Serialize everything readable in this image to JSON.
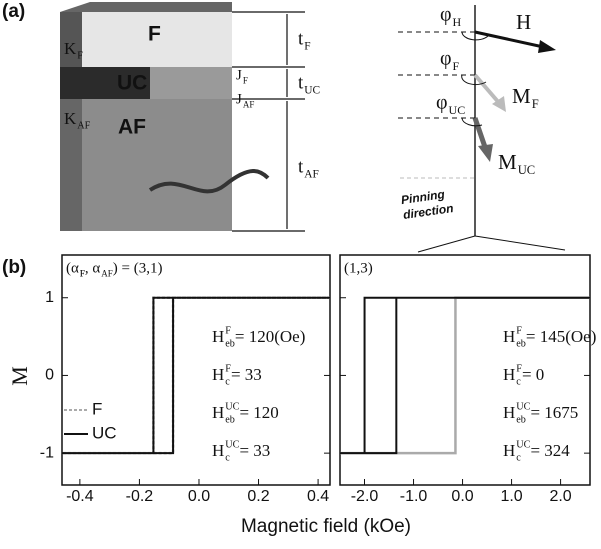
{
  "panel_a": {
    "label": "(a)",
    "layers": [
      "F",
      "UC",
      "AF"
    ],
    "anisotropy": [
      {
        "main": "K",
        "sub": "F"
      },
      {
        "main": "K",
        "sub": "AF"
      }
    ],
    "thickness": [
      {
        "main": "t",
        "sub": "F"
      },
      {
        "main": "t",
        "sub": "UC"
      },
      {
        "main": "t",
        "sub": "AF"
      }
    ],
    "coupling": [
      {
        "main": "J",
        "sub": "F"
      },
      {
        "main": "J",
        "sub": "AF"
      }
    ],
    "angles": [
      {
        "main": "φ",
        "sub": "H"
      },
      {
        "main": "φ",
        "sub": "F"
      },
      {
        "main": "φ",
        "sub": "UC"
      }
    ],
    "vectors": [
      {
        "main": "H"
      },
      {
        "main": "M",
        "sub": "F"
      },
      {
        "main": "M",
        "sub": "UC"
      }
    ],
    "pinning": [
      "Pinning",
      "direction"
    ]
  },
  "panel_b": {
    "label": "(b)",
    "xlabel": "Magnetic field (kOe)",
    "ylabel": "M"
  },
  "chart_data": [
    {
      "type": "line",
      "xlim": [
        -0.46,
        0.44
      ],
      "ylim": [
        -1.41,
        1.55
      ],
      "xticks": [
        -0.4,
        -0.2,
        {
          "value": 0,
          "label": "0.0"
        },
        0.2,
        0.4
      ],
      "yticks": [
        -1,
        0,
        1
      ],
      "legend": true,
      "corner_label": [
        {
          "main": "(α",
          "sub": "F"
        },
        {
          "main": ", α",
          "sub": "AF"
        },
        {
          "main": ") = (3,1)"
        }
      ],
      "annotations": [
        {
          "main": "H",
          "sup": "F",
          "sub": "eb",
          "rest": " = 120(Oe)"
        },
        {
          "main": "H",
          "sup": "F",
          "sub": "c",
          "rest": " = 33"
        },
        {
          "main": "H",
          "sup": "UC",
          "sub": "eb",
          "rest": " = 120"
        },
        {
          "main": "H",
          "sup": "UC",
          "sub": "c",
          "rest": " = 33"
        }
      ],
      "series": [
        {
          "name": "F",
          "color": "#aaaaaa",
          "dashed": true,
          "x": [
            0.44,
            -0.153,
            -0.153,
            -0.46,
            -0.087,
            -0.087,
            0.44
          ],
          "values": [
            1,
            1,
            -1,
            -1,
            -1,
            1,
            1
          ]
        },
        {
          "name": "UC",
          "color": "#111111",
          "dashed": false,
          "x": [
            0.44,
            -0.153,
            -0.153,
            -0.46,
            -0.087,
            -0.087,
            0.44
          ],
          "values": [
            1,
            1,
            -1,
            -1,
            -1,
            1,
            1
          ]
        }
      ]
    },
    {
      "type": "line",
      "xlim": [
        -2.5,
        2.6
      ],
      "ylim": [
        -1.41,
        1.55
      ],
      "xticks": [
        {
          "value": -2,
          "label": "-2.0"
        },
        {
          "value": -1,
          "label": "-1.0"
        },
        {
          "value": 0,
          "label": "0.0"
        },
        {
          "value": 1,
          "label": "1.0"
        },
        {
          "value": 2,
          "label": "2.0"
        }
      ],
      "yticks": [
        -1,
        0,
        1
      ],
      "legend": false,
      "corner_label": [
        {
          "main": "(1,3)"
        }
      ],
      "annotations": [
        {
          "main": "H",
          "sup": "F",
          "sub": "eb",
          "rest": " = 145(Oe)"
        },
        {
          "main": "H",
          "sup": "F",
          "sub": "c",
          "rest": " = 0"
        },
        {
          "main": "H",
          "sup": "UC",
          "sub": "eb",
          "rest": " = 1675"
        },
        {
          "main": "H",
          "sup": "UC",
          "sub": "c",
          "rest": " = 324"
        }
      ],
      "series": [
        {
          "color": "#aaaaaa",
          "dashed": true,
          "x": [
            2.6,
            -0.145,
            -0.145,
            -2.5,
            -0.145,
            -0.145,
            2.6
          ],
          "values": [
            1,
            1,
            -1,
            -1,
            -1,
            1,
            1
          ]
        },
        {
          "color": "#111111",
          "dashed": false,
          "x": [
            2.6,
            -1.999,
            -1.999,
            -2.5,
            -1.351,
            -1.351,
            2.6
          ],
          "values": [
            1,
            1,
            -1,
            -1,
            -1,
            1,
            1
          ]
        }
      ]
    }
  ]
}
